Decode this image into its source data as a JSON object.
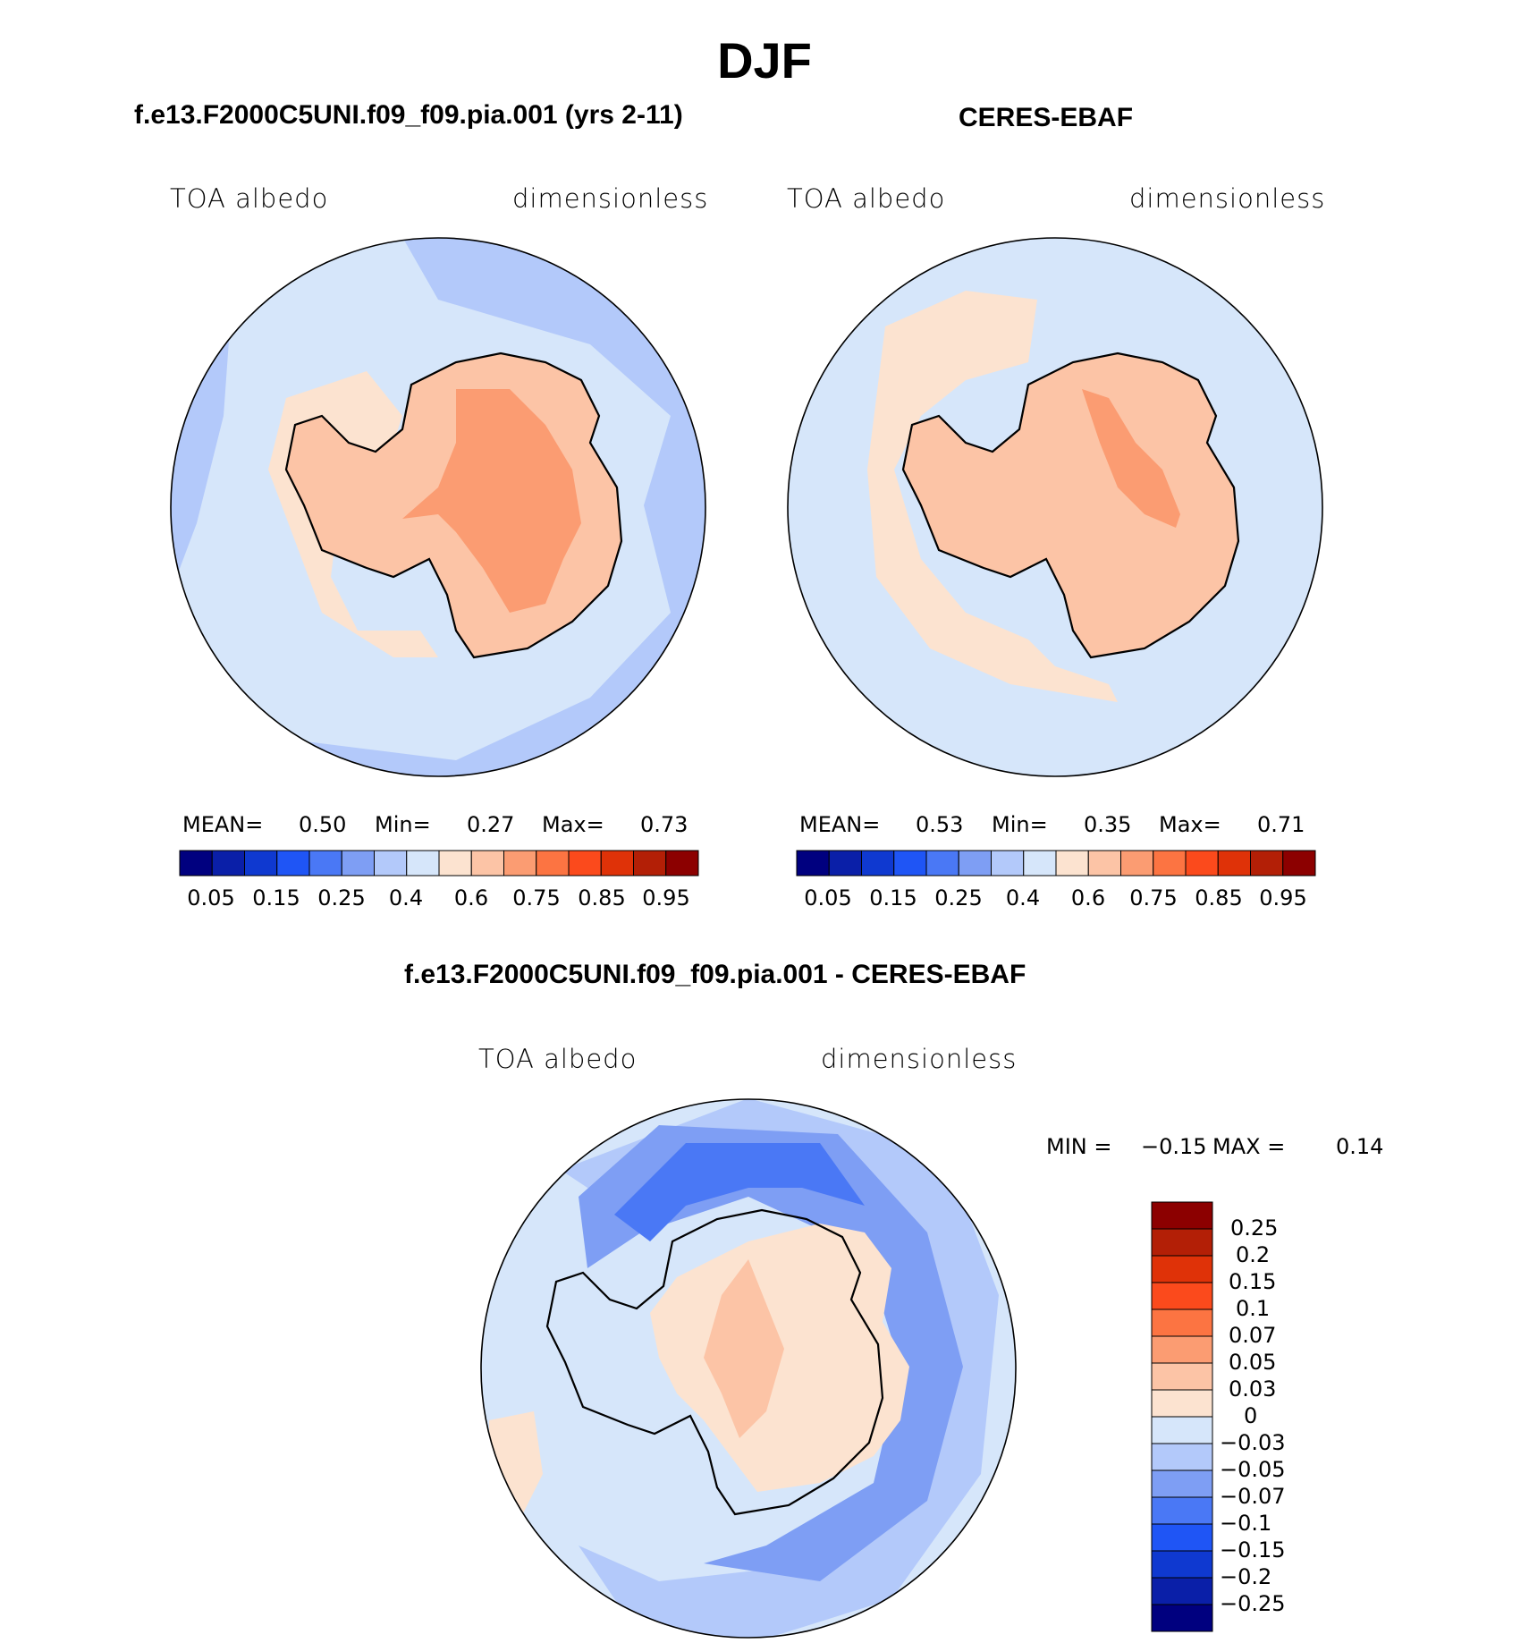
{
  "figure": {
    "season": "DJF",
    "panels": [
      {
        "title": "f.e13.F2000C5UNI.f09_f09.pia.001 (yrs 2-11)",
        "left_label": "TOA albedo",
        "right_label": "dimensionless",
        "stats": {
          "mean_label": "MEAN=",
          "mean": "0.50",
          "min_label": "Min=",
          "min": "0.27",
          "max_label": "Max=",
          "max": "0.73"
        }
      },
      {
        "title": "CERES-EBAF",
        "left_label": "TOA albedo",
        "right_label": "dimensionless",
        "stats": {
          "mean_label": "MEAN=",
          "mean": "0.53",
          "min_label": "Min=",
          "min": "0.35",
          "max_label": "Max=",
          "max": "0.71"
        }
      }
    ],
    "difference": {
      "title": "f.e13.F2000C5UNI.f09_f09.pia.001 - CERES-EBAF",
      "left_label": "TOA albedo",
      "right_label": "dimensionless",
      "stats": {
        "min_label": "MIN =",
        "min": "−0.15",
        "max_label": "MAX =",
        "max": "0.14"
      }
    },
    "colorbar_horizontal": {
      "labels": [
        "0.05",
        "0.15",
        "0.25",
        "0.4",
        "0.6",
        "0.75",
        "0.85",
        "0.95"
      ],
      "colors": [
        "#00007f",
        "#0a1fa8",
        "#0f39d0",
        "#1f55f5",
        "#4a78f5",
        "#7e9ef4",
        "#b3c9fa",
        "#d6e6fa",
        "#fce3d0",
        "#fcc4a6",
        "#fb9c72",
        "#fc7442",
        "#fb4a1c",
        "#df3208",
        "#b31f06",
        "#8c0000"
      ]
    },
    "colorbar_vertical": {
      "labels": [
        "0.25",
        "0.2",
        "0.15",
        "0.1",
        "0.07",
        "0.05",
        "0.03",
        "0",
        "−0.03",
        "−0.05",
        "−0.07",
        "−0.1",
        "−0.15",
        "−0.2",
        "−0.25"
      ],
      "colors": [
        "#8c0000",
        "#b31f06",
        "#df3208",
        "#fb4a1c",
        "#fc7442",
        "#fb9c72",
        "#fcc4a6",
        "#fce3d0",
        "#d6e6fa",
        "#b3c9fa",
        "#7e9ef4",
        "#4a78f5",
        "#1f55f5",
        "#0f39d0",
        "#0a1fa8",
        "#00007f"
      ]
    },
    "map_colors": {
      "ocean": "#d6e6fa",
      "ocean_mid": "#b3c9fa",
      "ocean_deep": "#7e9ef4",
      "ocean_strong": "#4a78f5",
      "sea_ice": "#fce3d0",
      "land": "#fcc4a6",
      "land_high": "#fb9c72",
      "diff_pos": "#fce3d0",
      "diff_pos2": "#fcc4a6",
      "diff_pos3": "#fb9c72",
      "diff_neg": "#d6e6fa",
      "diff_neg2": "#b3c9fa",
      "diff_neg3": "#7e9ef4",
      "diff_neg4": "#4a78f5",
      "diff_neg5": "#1f55f5"
    }
  }
}
